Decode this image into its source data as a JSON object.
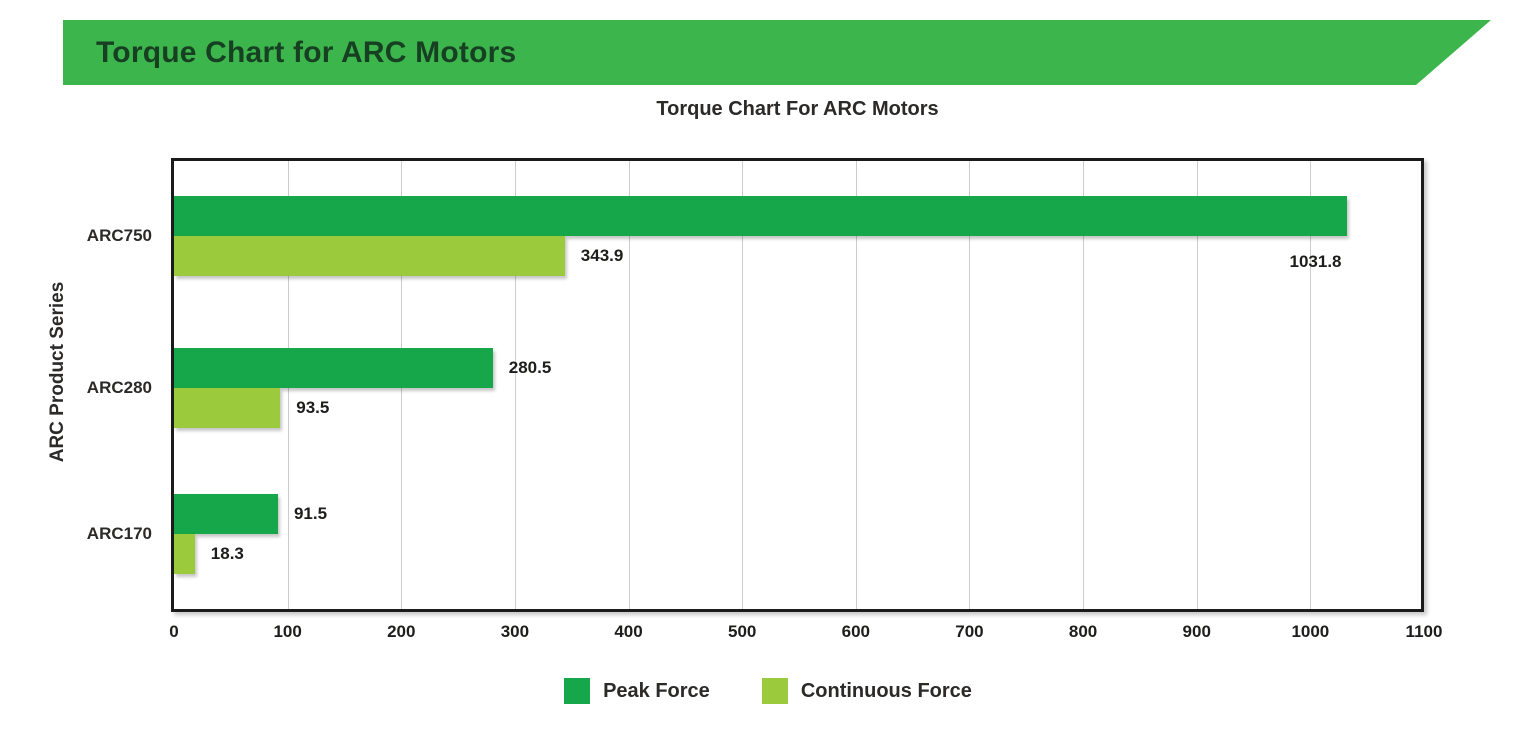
{
  "banner": {
    "title": "Torque Chart for ARC Motors"
  },
  "chart": {
    "title": "Torque Chart For ARC Motors",
    "y_axis_title": "ARC Product Series"
  },
  "chart_data": {
    "type": "bar",
    "orientation": "horizontal",
    "title": "Torque Chart For ARC Motors",
    "xlabel": "",
    "ylabel": "ARC Product Series",
    "categories": [
      "ARC750",
      "ARC280",
      "ARC170"
    ],
    "series": [
      {
        "name": "Peak Force",
        "color": "#16a74b",
        "values": [
          1031.8,
          280.5,
          91.5
        ]
      },
      {
        "name": "Continuous Force",
        "color": "#9cca3d",
        "values": [
          343.9,
          93.5,
          18.3
        ]
      }
    ],
    "value_labels": {
      "peak": [
        "1031.8",
        "280.5",
        "91.5"
      ],
      "continuous": [
        "343.9",
        "93.5",
        "18.3"
      ]
    },
    "xlim": [
      0,
      1100
    ],
    "x_ticks": [
      0,
      100,
      200,
      300,
      400,
      500,
      600,
      700,
      800,
      900,
      1000,
      1100
    ],
    "grid": true,
    "legend_position": "bottom"
  },
  "colors": {
    "banner_background": "#3cb54c",
    "banner_text": "#173f22",
    "peak_bar": "#16a74b",
    "continuous_bar": "#9cca3d",
    "text_dark": "#2b2a29",
    "value_text": "#1d1d1b",
    "gridline": "#cccccc",
    "plot_border": "#1b1b1b"
  }
}
